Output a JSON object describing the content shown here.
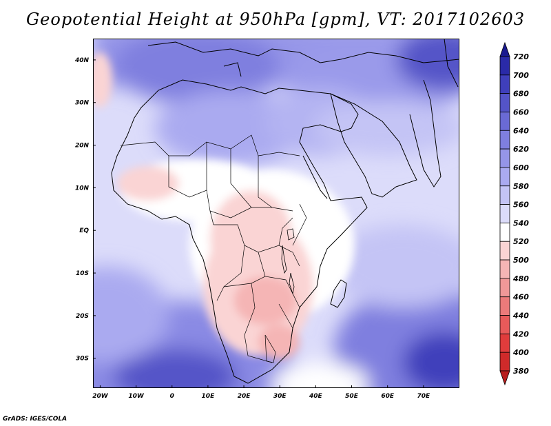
{
  "figure": {
    "title": "Geopotential Height at 950hPa [gpm], VT: 2017102603",
    "footer": "GrADS: IGES/COLA"
  },
  "map": {
    "variable": "Geopotential Height",
    "level": "950hPa",
    "units": "gpm",
    "valid_time": "2017102603",
    "lon_labels": [
      "20W",
      "10W",
      "0",
      "10E",
      "20E",
      "30E",
      "40E",
      "50E",
      "60E",
      "70E"
    ],
    "lat_labels": [
      "40N",
      "30N",
      "20N",
      "10N",
      "EQ",
      "10S",
      "20S",
      "30S"
    ],
    "lon_range": [
      -22,
      80
    ],
    "lat_range": [
      -37,
      45
    ]
  },
  "colorbar": {
    "levels": [
      "380",
      "400",
      "420",
      "440",
      "460",
      "480",
      "500",
      "520",
      "540",
      "560",
      "580",
      "600",
      "620",
      "640",
      "660",
      "680",
      "700",
      "720"
    ],
    "colors": [
      "#b81d1d",
      "#cf2a2a",
      "#e03c3c",
      "#e85a5a",
      "#ec7a7a",
      "#f09898",
      "#f5b5b5",
      "#fad4d4",
      "#ffffff",
      "#dcdcfa",
      "#c4c4f5",
      "#aaaaf0",
      "#9595e8",
      "#7f7fdf",
      "#6a6ad5",
      "#5454c8",
      "#3f3fbb",
      "#2a2aa8",
      "#1a1a90"
    ]
  },
  "colors": {
    "ocean_pale": "#dcdcfa",
    "land_low": "#fad4d4",
    "land_neutral": "#ffffff",
    "high_blue": "#6a6ad5",
    "coast": "#000000"
  }
}
